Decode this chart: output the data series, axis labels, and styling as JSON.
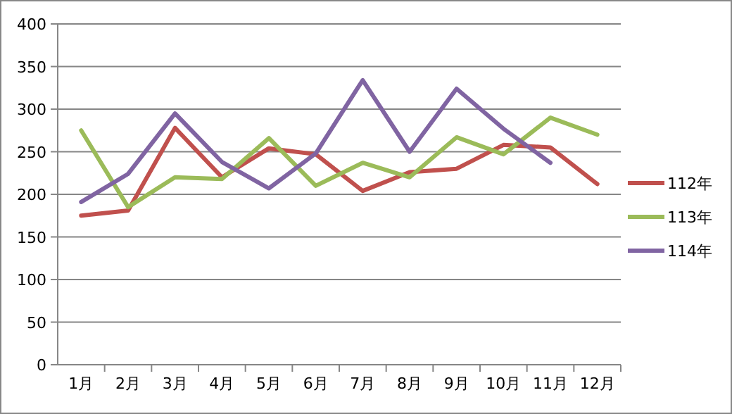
{
  "chart_data": {
    "type": "line",
    "categories": [
      "1月",
      "2月",
      "3月",
      "4月",
      "5月",
      "6月",
      "7月",
      "8月",
      "9月",
      "10月",
      "11月",
      "12月"
    ],
    "series": [
      {
        "name": "112年",
        "color": "#c0504d",
        "values": [
          175,
          181,
          278,
          220,
          254,
          247,
          204,
          226,
          230,
          258,
          255,
          212
        ]
      },
      {
        "name": "113年",
        "color": "#9bbb59",
        "values": [
          275,
          185,
          220,
          218,
          266,
          210,
          237,
          220,
          267,
          247,
          290,
          270
        ]
      },
      {
        "name": "114年",
        "color": "#8064a2",
        "values": [
          191,
          224,
          295,
          238,
          207,
          248,
          334,
          250,
          324,
          277,
          237,
          null
        ]
      }
    ],
    "ylim": [
      0,
      400
    ],
    "yticks": [
      0,
      50,
      100,
      150,
      200,
      250,
      300,
      350,
      400
    ],
    "grid": "y",
    "legend": "right",
    "marker": "none",
    "line_style": "solid"
  }
}
